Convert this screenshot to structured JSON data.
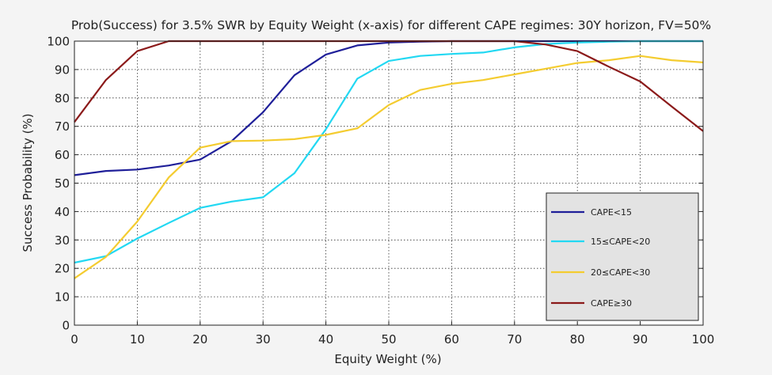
{
  "chart_data": {
    "type": "line",
    "title": "Prob(Success) for 3.5% SWR by Equity Weight (x-axis) for different CAPE regimes: 30Y horizon, FV=50%",
    "xlabel": "Equity Weight (%)",
    "ylabel": "Success Probability (%)",
    "xlim": [
      0,
      100
    ],
    "ylim": [
      0,
      100
    ],
    "xticks": [
      0,
      10,
      20,
      30,
      40,
      50,
      60,
      70,
      80,
      90,
      100
    ],
    "yticks": [
      0,
      10,
      20,
      30,
      40,
      50,
      60,
      70,
      80,
      90,
      100
    ],
    "grid": true,
    "legend_position": "lower-right",
    "x": [
      0,
      5,
      10,
      15,
      20,
      25,
      30,
      35,
      40,
      45,
      50,
      55,
      60,
      65,
      70,
      75,
      80,
      85,
      90,
      95,
      100
    ],
    "series": [
      {
        "name": "CAPE<15",
        "color": "#1f1f99",
        "values": [
          52.8,
          54.3,
          54.8,
          56.2,
          58.3,
          64.8,
          75.0,
          88.0,
          95.3,
          98.5,
          99.5,
          99.8,
          100,
          100,
          100,
          100,
          100,
          100,
          100,
          100,
          100
        ]
      },
      {
        "name": "15≤CAPE<20",
        "color": "#22d8f2",
        "values": [
          22.0,
          24.3,
          30.5,
          36.0,
          41.3,
          43.5,
          45.0,
          53.5,
          69.0,
          86.8,
          93.0,
          94.8,
          95.5,
          96.0,
          97.8,
          99.0,
          99.5,
          99.8,
          100,
          100,
          100
        ]
      },
      {
        "name": "20≤CAPE<30",
        "color": "#f4cc30",
        "values": [
          16.5,
          24.0,
          36.5,
          52.0,
          62.5,
          64.8,
          65.0,
          65.5,
          67.0,
          69.3,
          77.5,
          82.8,
          85.0,
          86.3,
          88.3,
          90.3,
          92.3,
          93.3,
          94.8,
          93.3,
          92.5
        ]
      },
      {
        "name": "CAPE≥30",
        "color": "#8b1a1a",
        "values": [
          71.5,
          86.3,
          96.5,
          100,
          100,
          100,
          100,
          100,
          100,
          100,
          100,
          100,
          100,
          100,
          100,
          98.8,
          96.5,
          91.0,
          85.8,
          77.0,
          68.3
        ]
      }
    ]
  }
}
